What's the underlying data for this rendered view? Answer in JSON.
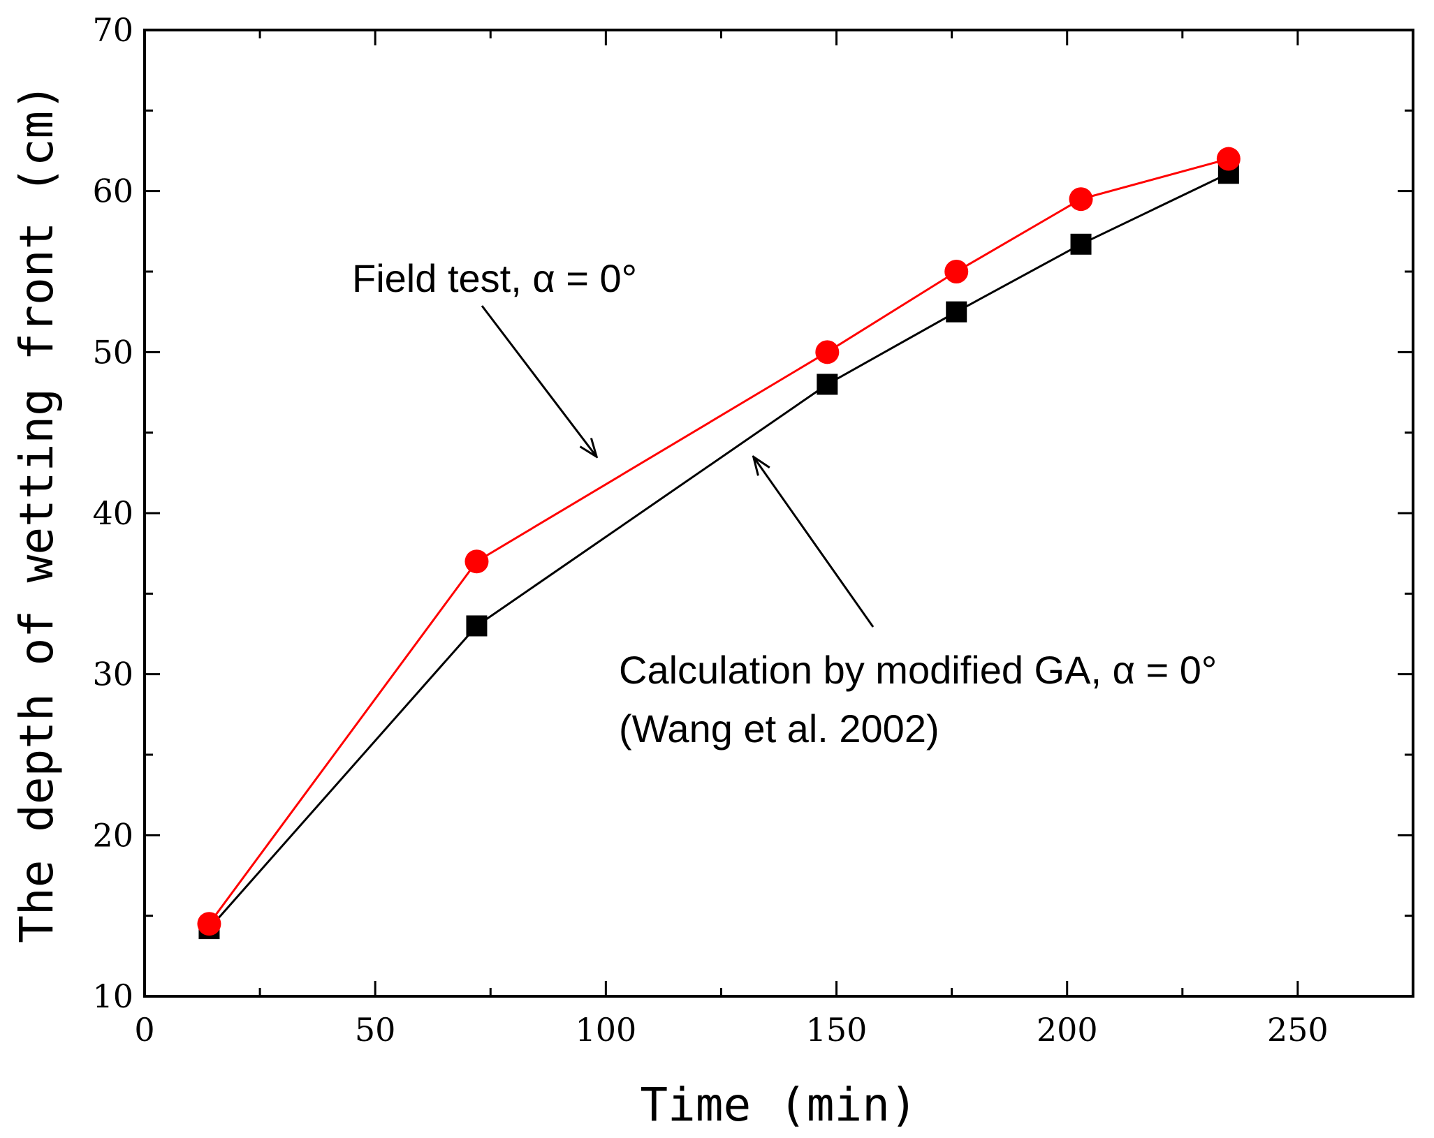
{
  "chart_data": {
    "type": "line",
    "title": "",
    "xlabel": "Time (min)",
    "ylabel": "The depth of wetting front (cm)",
    "xlim": [
      0,
      275
    ],
    "ylim": [
      10,
      70
    ],
    "xticks": [
      0,
      50,
      100,
      150,
      200,
      250
    ],
    "yticks": [
      10,
      20,
      30,
      40,
      50,
      60,
      70
    ],
    "grid": false,
    "series": [
      {
        "name": "Calculation by modified GA, α = 0°",
        "color": "#000000",
        "marker": "square",
        "x": [
          14,
          72,
          148,
          176,
          203,
          235
        ],
        "y": [
          14.2,
          33,
          48,
          52.5,
          56.7,
          61.1
        ]
      },
      {
        "name": "Field test, α = 0°",
        "color": "#ff0000",
        "marker": "circle",
        "x": [
          14,
          72,
          148,
          176,
          203,
          235
        ],
        "y": [
          14.5,
          37,
          50,
          55,
          59.5,
          62
        ]
      }
    ],
    "annotations": [
      {
        "text": "Field test, α = 0°",
        "points_to_series": 1,
        "arrow_tip": [
          98,
          43.5
        ]
      },
      {
        "text": "Calculation by modified GA, α = 0°",
        "subtext": "(Wang et al. 2002)",
        "points_to_series": 0,
        "arrow_tip": [
          132,
          43.5
        ]
      }
    ]
  }
}
